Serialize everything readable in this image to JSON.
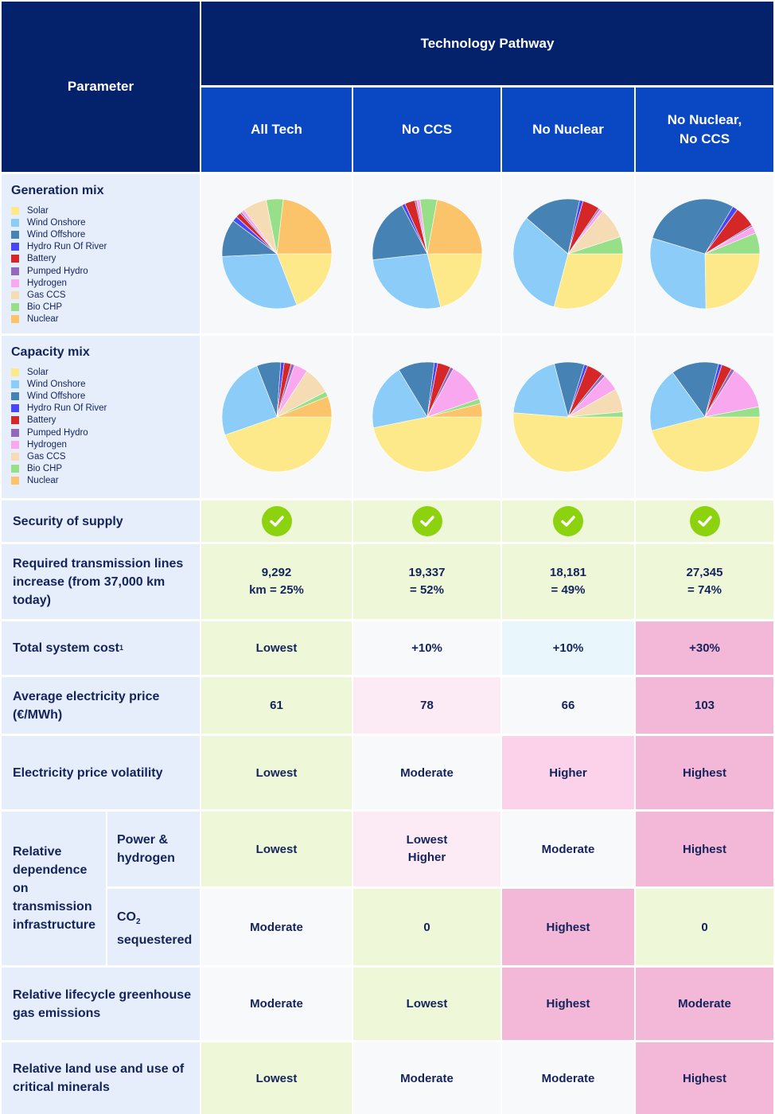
{
  "header": {
    "parameter": "Parameter",
    "technology_pathway": "Technology Pathway",
    "columns": [
      "All Tech",
      "No CCS",
      "No Nuclear",
      "No Nuclear,\nNo CCS"
    ]
  },
  "legend_items": [
    {
      "label": "Solar",
      "color": "#fde98a"
    },
    {
      "label": "Wind Onshore",
      "color": "#8cccf9"
    },
    {
      "label": "Wind Offshore",
      "color": "#4682b4"
    },
    {
      "label": "Hydro Run Of River",
      "color": "#4747f5"
    },
    {
      "label": "Battery",
      "color": "#d62728"
    },
    {
      "label": "Pumped Hydro",
      "color": "#9467bd"
    },
    {
      "label": "Hydrogen",
      "color": "#f9a8ef"
    },
    {
      "label": "Gas CCS",
      "color": "#f5dcb4"
    },
    {
      "label": "Bio CHP",
      "color": "#98df8a"
    },
    {
      "label": "Nuclear",
      "color": "#fcc46a"
    }
  ],
  "rows": {
    "generation_mix": "Generation mix",
    "capacity_mix": "Capacity mix",
    "security_of_supply": "Security of supply",
    "transmission": "Required transmission lines increase (from 37,000 km today)",
    "total_cost": "Total system cost",
    "total_cost_note": "1",
    "avg_price": "Average electricity price (€/MWh)",
    "volatility": "Electricity price volatility",
    "dependence": "Relative dependence on transmission infrastructure",
    "power_hydrogen": "Power & hydrogen",
    "co2_prefix": "CO",
    "co2_sub": "2",
    "co2_suffix": "sequestered",
    "ghg": "Relative lifecycle greenhouse gas emissions",
    "land_use": "Relative land use and use of critical minerals"
  },
  "values": {
    "transmission": [
      [
        "9,292",
        "km = 25%"
      ],
      [
        "19,337",
        "= 52%"
      ],
      [
        "18,181",
        "= 49%"
      ],
      [
        "27,345",
        "= 74%"
      ]
    ],
    "total_cost": [
      "Lowest",
      "+10%",
      "+10%",
      "+30%"
    ],
    "avg_price": [
      "61",
      "78",
      "66",
      "103"
    ],
    "volatility": [
      "Lowest",
      "Moderate",
      "Higher",
      "Highest"
    ],
    "power_hydrogen": [
      [
        "Lowest"
      ],
      [
        "Lowest",
        "Higher"
      ],
      [
        "Moderate"
      ],
      [
        "Highest"
      ]
    ],
    "co2_sequestered": [
      "Moderate",
      "0",
      "Highest",
      "0"
    ],
    "ghg": [
      "Moderate",
      "Lowest",
      "Highest",
      "Moderate"
    ],
    "land_use": [
      "Lowest",
      "Moderate",
      "Moderate",
      "Highest"
    ]
  },
  "chart_data": [
    {
      "type": "pie",
      "title": "Generation mix",
      "pathways": [
        "All Tech",
        "No CCS",
        "No Nuclear",
        "No Nuclear, No CCS"
      ],
      "categories": [
        "Solar",
        "Wind Onshore",
        "Wind Offshore",
        "Hydro Run Of River",
        "Battery",
        "Pumped Hydro",
        "Hydrogen",
        "Gas CCS",
        "Bio CHP",
        "Nuclear"
      ],
      "series": [
        {
          "values": [
            19,
            30,
            11,
            1.5,
            1.5,
            0.5,
            1,
            7,
            5,
            23
          ]
        },
        {
          "values": [
            21,
            27,
            19,
            1,
            3,
            0.5,
            1,
            0,
            5,
            22
          ]
        },
        {
          "values": [
            29,
            32,
            17,
            1,
            5,
            0.5,
            1,
            9,
            5,
            0
          ]
        },
        {
          "values": [
            24,
            29,
            28,
            1.5,
            6,
            0.5,
            2,
            0,
            6,
            0
          ]
        }
      ]
    },
    {
      "type": "pie",
      "title": "Capacity mix",
      "pathways": [
        "All Tech",
        "No CCS",
        "No Nuclear",
        "No Nuclear, No CCS"
      ],
      "categories": [
        "Solar",
        "Wind Onshore",
        "Wind Offshore",
        "Hydro Run Of River",
        "Battery",
        "Pumped Hydro",
        "Hydrogen",
        "Gas CCS",
        "Bio CHP",
        "Nuclear"
      ],
      "series": [
        {
          "values": [
            44,
            24,
            7,
            1,
            2,
            1,
            4,
            8,
            1.5,
            6
          ]
        },
        {
          "values": [
            48,
            20,
            11,
            1,
            4,
            1,
            12,
            0,
            1.5,
            4
          ]
        },
        {
          "values": [
            52,
            20,
            9,
            1,
            5,
            1,
            5,
            7,
            1.5,
            0
          ]
        },
        {
          "values": [
            46,
            19,
            14,
            1,
            3,
            1,
            13,
            0,
            3,
            0
          ]
        }
      ]
    }
  ]
}
